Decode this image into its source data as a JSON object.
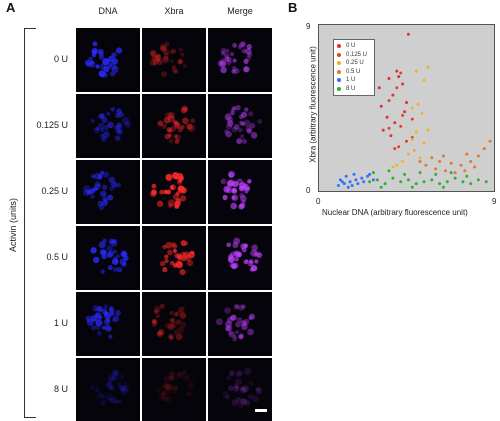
{
  "panel_a": {
    "letter": "A",
    "columns": [
      "DNA",
      "Xbra",
      "Merge"
    ],
    "rows": [
      "0 U",
      "0.125 U",
      "0.25 U",
      "0.5 U",
      "1 U",
      "8 U"
    ],
    "y_group_label": "Activin (units)"
  },
  "panel_b": {
    "letter": "B",
    "x_ticks": [
      "0",
      "9"
    ],
    "y_ticks": [
      "9",
      "0"
    ],
    "xlabel": "Nuclear DNA (arbitrary fluorescence unit)",
    "ylabel": "Xbra (arbitrary fluorescence unit)"
  },
  "colors": {
    "dna": "#2a2aff",
    "xbra": "#ff2a2a",
    "merge": "#c040ff",
    "series_0U": "#e03030",
    "series_0125U": "#e84030",
    "series_025U": "#f0b030",
    "series_05U": "#e07a30",
    "series_1U": "#3070ff",
    "series_8U": "#30b030"
  },
  "chart_data": {
    "type": "scatter",
    "title": "",
    "xlabel": "Nuclear DNA (arbitrary fluorescence unit)",
    "ylabel": "Xbra (arbitrary fluorescence unit)",
    "xlim": [
      0,
      9
    ],
    "ylim": [
      0,
      9
    ],
    "grid": false,
    "legend_position": "top-left",
    "series": [
      {
        "name": "0 U",
        "color": "#e03030",
        "points": [
          [
            4.6,
            8.5
          ],
          [
            3.1,
            5.6
          ],
          [
            3.8,
            5.2
          ],
          [
            3.2,
            4.6
          ],
          [
            4.4,
            4.3
          ],
          [
            3.5,
            4.0
          ],
          [
            3.9,
            3.7
          ],
          [
            4.1,
            6.2
          ],
          [
            3.6,
            6.1
          ],
          [
            4.3,
            5.8
          ],
          [
            4.0,
            6.5
          ],
          [
            3.3,
            3.3
          ],
          [
            4.5,
            4.8
          ],
          [
            3.7,
            3.0
          ]
        ]
      },
      {
        "name": "0.125 U",
        "color": "#e84030",
        "points": [
          [
            4.2,
            6.4
          ],
          [
            4.0,
            5.6
          ],
          [
            3.6,
            4.9
          ],
          [
            4.3,
            4.1
          ],
          [
            4.8,
            3.9
          ],
          [
            4.2,
            3.5
          ],
          [
            3.6,
            3.4
          ],
          [
            4.8,
            2.9
          ],
          [
            4.5,
            2.7
          ],
          [
            4.1,
            2.4
          ],
          [
            3.9,
            2.3
          ]
        ]
      },
      {
        "name": "0.25 U",
        "color": "#f0b030",
        "points": [
          [
            5.6,
            6.7
          ],
          [
            5.0,
            6.5
          ],
          [
            5.4,
            6.0
          ],
          [
            5.1,
            4.7
          ],
          [
            4.8,
            4.5
          ],
          [
            5.3,
            4.2
          ],
          [
            5.6,
            3.3
          ],
          [
            5.0,
            3.2
          ],
          [
            4.8,
            2.8
          ],
          [
            5.4,
            2.6
          ],
          [
            4.9,
            2.2
          ],
          [
            4.6,
            2.0
          ],
          [
            5.2,
            1.8
          ],
          [
            4.3,
            1.6
          ],
          [
            4.0,
            1.4
          ],
          [
            3.8,
            1.3
          ]
        ]
      },
      {
        "name": "0.5 U",
        "color": "#e07a30",
        "points": [
          [
            5.8,
            1.8
          ],
          [
            6.2,
            1.6
          ],
          [
            6.8,
            1.5
          ],
          [
            7.3,
            1.4
          ],
          [
            7.8,
            1.6
          ],
          [
            8.2,
            1.9
          ],
          [
            8.5,
            2.3
          ],
          [
            8.8,
            2.7
          ],
          [
            6.0,
            1.2
          ],
          [
            6.5,
            1.1
          ],
          [
            7.0,
            1.0
          ],
          [
            7.5,
            1.1
          ],
          [
            8.0,
            1.3
          ],
          [
            5.5,
            1.4
          ],
          [
            5.2,
            1.6
          ],
          [
            6.4,
            1.9
          ],
          [
            7.6,
            2.0
          ]
        ]
      },
      {
        "name": "1 U",
        "color": "#3070ff",
        "points": [
          [
            1.0,
            0.3
          ],
          [
            1.3,
            0.4
          ],
          [
            1.6,
            0.5
          ],
          [
            1.9,
            0.6
          ],
          [
            2.2,
            0.7
          ],
          [
            2.5,
            0.8
          ],
          [
            2.8,
            0.6
          ],
          [
            1.1,
            0.6
          ],
          [
            1.4,
            0.8
          ],
          [
            1.7,
            0.3
          ],
          [
            2.0,
            0.4
          ],
          [
            2.3,
            0.5
          ],
          [
            2.6,
            0.9
          ],
          [
            1.2,
            0.5
          ],
          [
            1.5,
            0.2
          ],
          [
            1.8,
            0.9
          ]
        ]
      },
      {
        "name": "8 U",
        "color": "#30b030",
        "points": [
          [
            2.6,
            0.5
          ],
          [
            3.0,
            0.6
          ],
          [
            3.4,
            0.4
          ],
          [
            3.8,
            0.7
          ],
          [
            4.2,
            0.5
          ],
          [
            4.6,
            0.6
          ],
          [
            5.0,
            0.4
          ],
          [
            5.4,
            0.5
          ],
          [
            5.8,
            0.6
          ],
          [
            6.2,
            0.4
          ],
          [
            6.6,
            0.5
          ],
          [
            7.0,
            0.7
          ],
          [
            7.4,
            0.5
          ],
          [
            7.8,
            0.4
          ],
          [
            8.2,
            0.6
          ],
          [
            8.6,
            0.5
          ],
          [
            2.8,
            1.0
          ],
          [
            3.6,
            1.1
          ],
          [
            4.4,
            0.9
          ],
          [
            5.2,
            1.0
          ],
          [
            6.0,
            0.9
          ],
          [
            6.8,
            1.0
          ],
          [
            7.6,
            0.8
          ],
          [
            3.2,
            0.2
          ],
          [
            4.8,
            0.2
          ],
          [
            6.4,
            0.2
          ]
        ]
      }
    ]
  }
}
